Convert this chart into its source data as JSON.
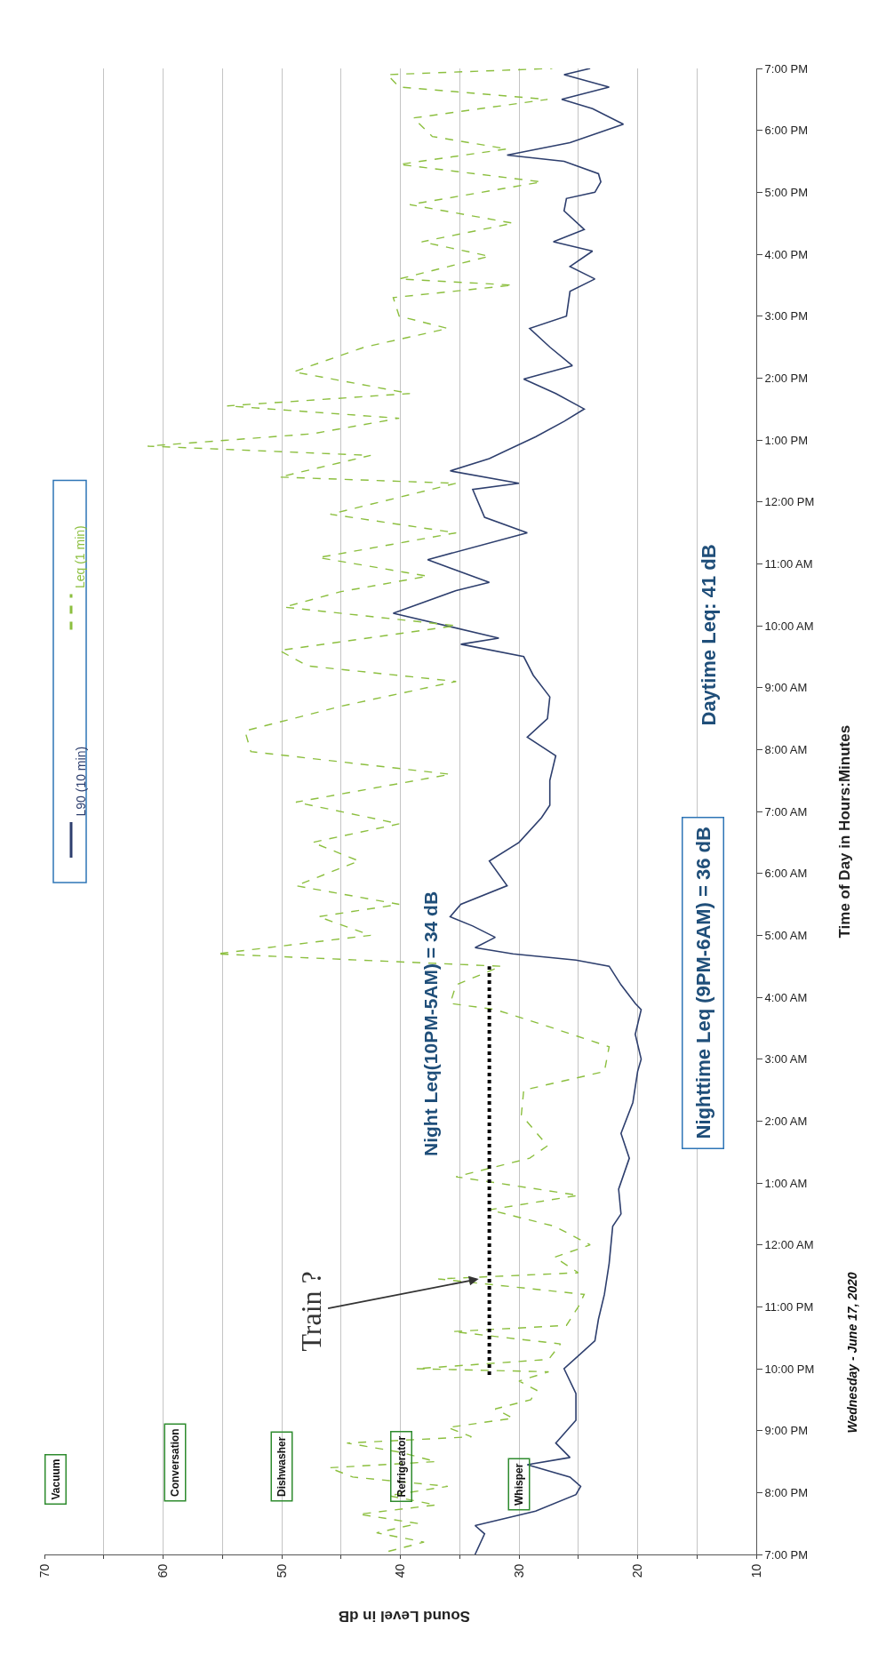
{
  "chart_data": {
    "type": "line",
    "orientation": "horizontal",
    "xlabel": "Sound Level in dB",
    "ylabel": "Time of Day in Hours:Minutes",
    "xlim": [
      70,
      10
    ],
    "xticks": [
      10,
      {
        "value": 15,
        "label": null
      },
      20,
      {
        "value": 25,
        "label": null
      },
      30,
      {
        "value": 35,
        "label": null
      },
      40,
      {
        "value": 45,
        "label": null
      },
      50,
      {
        "value": 55,
        "label": null
      },
      60,
      {
        "value": 65,
        "label": null
      },
      70
    ],
    "ylim": [
      "2020-06-17T19:00",
      "2020-06-18T19:00"
    ],
    "yticks": [
      {
        "value": "2020-06-17T19:00",
        "label": "7:00 PM"
      },
      {
        "value": "2020-06-17T20:00",
        "label": "8:00 PM"
      },
      {
        "value": "2020-06-17T21:00",
        "label": "9:00 PM"
      },
      {
        "value": "2020-06-17T22:00",
        "label": "10:00 PM"
      },
      {
        "value": "2020-06-17T23:00",
        "label": "11:00 PM"
      },
      {
        "value": "2020-06-18T00:00",
        "label": "12:00 AM"
      },
      {
        "value": "2020-06-18T01:00",
        "label": "1:00 AM"
      },
      {
        "value": "2020-06-18T02:00",
        "label": "2:00 AM"
      },
      {
        "value": "2020-06-18T03:00",
        "label": "3:00 AM"
      },
      {
        "value": "2020-06-18T04:00",
        "label": "4:00 AM"
      },
      {
        "value": "2020-06-18T05:00",
        "label": "5:00 AM"
      },
      {
        "value": "2020-06-18T06:00",
        "label": "6:00 AM"
      },
      {
        "value": "2020-06-18T07:00",
        "label": "7:00 AM"
      },
      {
        "value": "2020-06-18T08:00",
        "label": "8:00 AM"
      },
      {
        "value": "2020-06-18T09:00",
        "label": "9:00 AM"
      },
      {
        "value": "2020-06-18T10:00",
        "label": "10:00 AM"
      },
      {
        "value": "2020-06-18T11:00",
        "label": "11:00 AM"
      },
      {
        "value": "2020-06-18T12:00",
        "label": "12:00 PM"
      },
      {
        "value": "2020-06-18T13:00",
        "label": "1:00 PM"
      },
      {
        "value": "2020-06-18T14:00",
        "label": "2:00 PM"
      },
      {
        "value": "2020-06-18T15:00",
        "label": "3:00 PM"
      },
      {
        "value": "2020-06-18T16:00",
        "label": "4:00 PM"
      },
      {
        "value": "2020-06-18T17:00",
        "label": "5:00 PM"
      },
      {
        "value": "2020-06-18T18:00",
        "label": "6:00 PM"
      },
      {
        "value": "2020-06-18T19:00",
        "label": "7:00 PM"
      }
    ],
    "grid": "x",
    "legend": "left",
    "marker": "none",
    "series": [
      {
        "name": "L90 (10 min)",
        "color": "#2e3f6e",
        "line_style": "solid",
        "values": [
          33.7,
          32.9,
          33.7,
          28.6,
          25.2,
          24.8,
          25.7,
          29.3,
          25.7,
          26.9,
          25.2,
          25.2,
          26.2,
          23.6,
          23.3,
          22.8,
          22.4,
          22.1,
          21.4,
          21.6,
          20.7,
          21.4,
          20.4,
          20.0,
          19.7,
          20.2,
          19.7,
          20.2,
          21.4,
          22.4,
          25.2,
          30.5,
          33.7,
          32.0,
          33.9,
          35.8,
          34.9,
          31.0,
          32.5,
          30.0,
          28.1,
          27.4,
          27.4,
          26.9,
          29.3,
          27.6,
          27.4,
          28.8,
          29.6,
          34.9,
          31.7,
          40.6,
          35.3,
          32.5,
          37.7,
          29.3,
          32.9,
          33.9,
          30.0,
          35.8,
          32.5,
          28.6,
          26.2,
          24.5,
          26.9,
          29.6,
          25.5,
          27.4,
          29.1,
          26.0,
          25.7,
          23.6,
          25.7,
          23.8,
          27.1,
          24.5,
          26.2,
          26.0,
          23.6,
          23.1,
          23.3,
          26.2,
          31.0,
          25.7,
          21.2,
          23.8,
          26.4,
          22.4,
          26.2,
          24.0
        ],
        "x": [
          "2020-06-17T19:00",
          "2020-06-17T19:20",
          "2020-06-17T19:28",
          "2020-06-17T19:42",
          "2020-06-17T19:58",
          "2020-06-17T20:06",
          "2020-06-17T20:15",
          "2020-06-17T20:27",
          "2020-06-17T20:34",
          "2020-06-17T20:48",
          "2020-06-17T21:10",
          "2020-06-17T21:36",
          "2020-06-17T22:00",
          "2020-06-17T22:27",
          "2020-06-17T22:48",
          "2020-06-17T23:12",
          "2020-06-17T23:42",
          "2020-06-18T00:18",
          "2020-06-18T00:30",
          "2020-06-18T00:54",
          "2020-06-18T01:24",
          "2020-06-18T01:48",
          "2020-06-18T02:18",
          "2020-06-18T02:48",
          "2020-06-18T03:00",
          "2020-06-18T03:24",
          "2020-06-18T03:48",
          "2020-06-18T03:54",
          "2020-06-18T04:12",
          "2020-06-18T04:30",
          "2020-06-18T04:36",
          "2020-06-18T04:42",
          "2020-06-18T04:48",
          "2020-06-18T04:58",
          "2020-06-18T05:09",
          "2020-06-18T05:18",
          "2020-06-18T05:30",
          "2020-06-18T05:48",
          "2020-06-18T06:12",
          "2020-06-18T06:30",
          "2020-06-18T06:54",
          "2020-06-18T07:06",
          "2020-06-18T07:30",
          "2020-06-18T07:54",
          "2020-06-18T08:12",
          "2020-06-18T08:30",
          "2020-06-18T08:51",
          "2020-06-18T09:12",
          "2020-06-18T09:30",
          "2020-06-18T09:42",
          "2020-06-18T09:48",
          "2020-06-18T10:12",
          "2020-06-18T10:34",
          "2020-06-18T10:42",
          "2020-06-18T11:04",
          "2020-06-18T11:30",
          "2020-06-18T11:45",
          "2020-06-18T12:12",
          "2020-06-18T12:18",
          "2020-06-18T12:30",
          "2020-06-18T12:42",
          "2020-06-18T13:03",
          "2020-06-18T13:18",
          "2020-06-18T13:30",
          "2020-06-18T13:45",
          "2020-06-18T13:59",
          "2020-06-18T14:12",
          "2020-06-18T14:30",
          "2020-06-18T14:48",
          "2020-06-18T15:00",
          "2020-06-18T15:24",
          "2020-06-18T15:36",
          "2020-06-18T15:48",
          "2020-06-18T16:03",
          "2020-06-18T16:12",
          "2020-06-18T16:24",
          "2020-06-18T16:42",
          "2020-06-18T16:54",
          "2020-06-18T17:00",
          "2020-06-18T17:10",
          "2020-06-18T17:18",
          "2020-06-18T17:30",
          "2020-06-18T17:36",
          "2020-06-18T17:48",
          "2020-06-18T18:06",
          "2020-06-18T18:21",
          "2020-06-18T18:30",
          "2020-06-18T18:42",
          "2020-06-18T18:54",
          "2020-06-18T19:00"
        ]
      },
      {
        "name": "Leq (1 min)",
        "color": "#8cbf3f",
        "line_style": "dashed",
        "values": [
          41,
          38,
          42,
          38.5,
          43.5,
          37,
          41,
          36,
          44,
          46,
          37,
          40,
          44.5,
          34,
          36,
          30.5,
          32,
          29,
          28.5,
          30,
          27.5,
          38.7,
          27.5,
          26.5,
          35.6,
          26,
          25,
          24.5,
          36.8,
          25,
          27,
          24,
          27,
          32.5,
          25,
          35.3,
          29.1,
          27.6,
          29.8,
          29.6,
          22.8,
          22.4,
          27.9,
          32.0,
          35.8,
          35.3,
          31.5,
          55.5,
          42.5,
          46.9,
          40.1,
          48.8,
          43.5,
          47.4,
          40.1,
          48.8,
          35.8,
          52.6,
          53.1,
          45.0,
          35.3,
          47.8,
          50.2,
          35.3,
          49.8,
          45.0,
          37.7,
          46.9,
          35.3,
          45.9,
          35.3,
          50.2,
          42.5,
          61.3,
          47.4,
          40.1,
          54.6,
          39.2,
          49.0,
          43.0,
          36.0,
          40.1,
          40.6,
          30.5,
          40.1,
          32.5,
          38.2,
          30.5,
          39.2,
          28.1,
          40.1,
          31.0,
          37.3,
          38.9,
          27.6,
          40.1,
          41.1,
          27.2
        ],
        "x": [
          "2020-06-17T19:03",
          "2020-06-17T19:12",
          "2020-06-17T19:21",
          "2020-06-17T19:30",
          "2020-06-17T19:39",
          "2020-06-17T19:48",
          "2020-06-17T19:57",
          "2020-06-17T20:06",
          "2020-06-17T20:15",
          "2020-06-17T20:24",
          "2020-06-17T20:30",
          "2020-06-17T20:39",
          "2020-06-17T20:48",
          "2020-06-17T20:54",
          "2020-06-17T21:03",
          "2020-06-17T21:12",
          "2020-06-17T21:21",
          "2020-06-17T21:30",
          "2020-06-17T21:39",
          "2020-06-17T21:48",
          "2020-06-17T21:57",
          "2020-06-17T22:00",
          "2020-06-17T22:09",
          "2020-06-17T22:24",
          "2020-06-17T22:36",
          "2020-06-17T22:42",
          "2020-06-17T23:00",
          "2020-06-17T23:12",
          "2020-06-17T23:27",
          "2020-06-17T23:33",
          "2020-06-17T23:48",
          "2020-06-18T00:00",
          "2020-06-18T00:18",
          "2020-06-18T00:34",
          "2020-06-18T00:48",
          "2020-06-18T01:06",
          "2020-06-18T01:24",
          "2020-06-18T01:36",
          "2020-06-18T02:06",
          "2020-06-18T02:30",
          "2020-06-18T02:48",
          "2020-06-18T03:12",
          "2020-06-18T03:33",
          "2020-06-18T03:48",
          "2020-06-18T03:54",
          "2020-06-18T04:12",
          "2020-06-18T04:30",
          "2020-06-18T04:42",
          "2020-06-18T05:00",
          "2020-06-18T05:18",
          "2020-06-18T05:30",
          "2020-06-18T05:48",
          "2020-06-18T06:12",
          "2020-06-18T06:30",
          "2020-06-18T06:48",
          "2020-06-18T07:09",
          "2020-06-18T07:36",
          "2020-06-18T07:58",
          "2020-06-18T08:18",
          "2020-06-18T08:42",
          "2020-06-18T09:06",
          "2020-06-18T09:21",
          "2020-06-18T09:36",
          "2020-06-18T10:00",
          "2020-06-18T10:18",
          "2020-06-18T10:33",
          "2020-06-18T10:48",
          "2020-06-18T11:06",
          "2020-06-18T11:30",
          "2020-06-18T11:48",
          "2020-06-18T12:18",
          "2020-06-18T12:24",
          "2020-06-18T12:45",
          "2020-06-18T12:54",
          "2020-06-18T13:06",
          "2020-06-18T13:21",
          "2020-06-18T13:33",
          "2020-06-18T13:45",
          "2020-06-18T14:06",
          "2020-06-18T14:30",
          "2020-06-18T14:48",
          "2020-06-18T15:00",
          "2020-06-18T15:18",
          "2020-06-18T15:30",
          "2020-06-18T15:36",
          "2020-06-18T15:58",
          "2020-06-18T16:12",
          "2020-06-18T16:30",
          "2020-06-18T16:48",
          "2020-06-18T17:10",
          "2020-06-18T17:27",
          "2020-06-18T17:42",
          "2020-06-18T17:54",
          "2020-06-18T18:12",
          "2020-06-18T18:30",
          "2020-06-18T18:42",
          "2020-06-18T18:54",
          "2020-06-18T19:00"
        ]
      },
      {
        "color": "#000000",
        "line_style": "dotted",
        "values": [
          32.5,
          32.5
        ],
        "x": [
          "2020-06-17T21:54",
          "2020-06-18T04:30"
        ]
      }
    ],
    "annotations": [
      {
        "text": "Train ?",
        "x": 33.4,
        "y": "2020-06-17T23:27"
      },
      "Night Leq(10PM-5AM) = 34 dB",
      "Vacuum",
      "Conversation",
      "Dishwasher",
      "Refrigerator",
      "Whisper",
      "Daytime Leq: 41 dB",
      "Nighttime Leq (9PM-6AM) = 36 dB",
      "Wednesday - June 17, 2020"
    ]
  }
}
